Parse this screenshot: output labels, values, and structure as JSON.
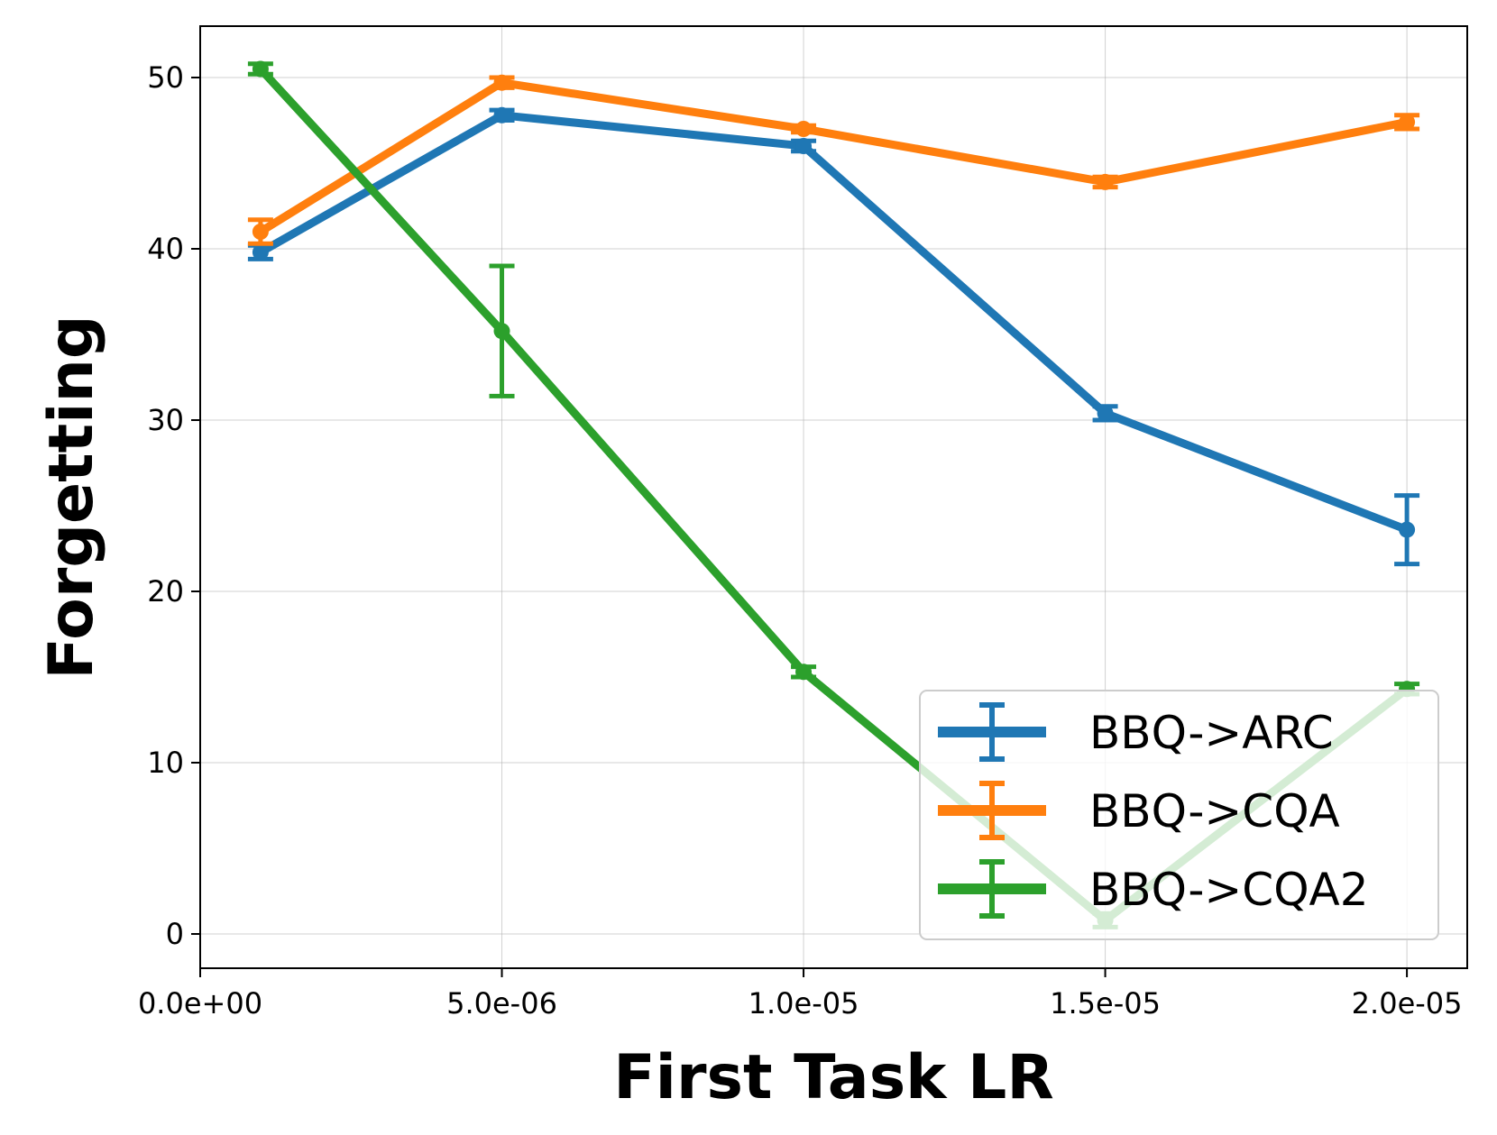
{
  "chart_data": {
    "type": "line",
    "xlabel": "First Task LR",
    "ylabel": "Forgetting",
    "xlim": [
      0.0,
      2.1e-05
    ],
    "ylim": [
      -2,
      53
    ],
    "x_ticks": [
      0.0,
      5e-06,
      1e-05,
      1.5e-05,
      2e-05
    ],
    "x_tick_labels": [
      "0.0e+00",
      "5.0e-06",
      "1.0e-05",
      "1.5e-05",
      "2.0e-05"
    ],
    "y_ticks": [
      0,
      10,
      20,
      30,
      40,
      50
    ],
    "y_tick_labels": [
      "0",
      "10",
      "20",
      "30",
      "40",
      "50"
    ],
    "grid": true,
    "legend_position": "lower-right",
    "x": [
      1e-06,
      5e-06,
      1e-05,
      1.5e-05,
      2e-05
    ],
    "series": [
      {
        "name": "BBQ->ARC",
        "color": "#1f77b4",
        "values": [
          39.8,
          47.8,
          46.0,
          30.4,
          23.6
        ],
        "errors": [
          0.4,
          0.3,
          0.3,
          0.4,
          2.0
        ]
      },
      {
        "name": "BBQ->CQA",
        "color": "#ff7f0e",
        "values": [
          41.0,
          49.7,
          47.0,
          43.9,
          47.4
        ],
        "errors": [
          0.7,
          0.3,
          0.2,
          0.3,
          0.4
        ]
      },
      {
        "name": "BBQ->CQA2",
        "color": "#2ca02c",
        "values": [
          50.5,
          35.2,
          15.3,
          0.8,
          14.3
        ],
        "errors": [
          0.3,
          3.8,
          0.3,
          0.4,
          0.3
        ]
      }
    ]
  }
}
